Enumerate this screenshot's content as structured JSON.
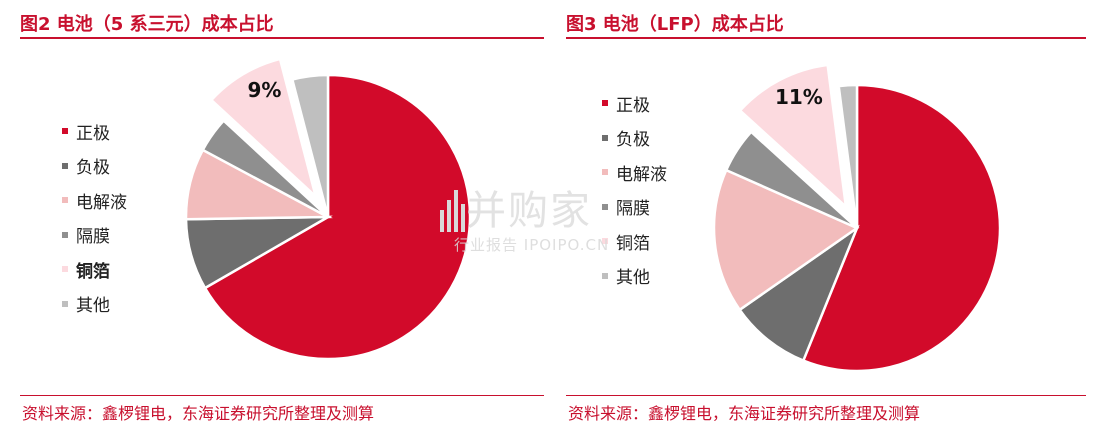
{
  "charts": [
    {
      "title": "图2  电池（5 系三元）成本占比",
      "source": "资料来源：鑫椤锂电，东海证券研究所整理及测算"
    },
    {
      "title": "图3  电池（LFP）成本占比",
      "source": "资料来源：鑫椤锂电，东海证券研究所整理及测算"
    }
  ],
  "watermark": {
    "main": "并购家",
    "sub": "行业报告 IPOIPO.CN"
  },
  "colors": {
    "正极": "#d20a2a",
    "负极": "#6e6e6e",
    "电解液": "#f2bcbc",
    "隔膜": "#8f8f8f",
    "铜箔": "#fcdadf",
    "其他": "#bfbfbf"
  },
  "chart_data": [
    {
      "type": "pie",
      "title": "图2  电池（5 系三元）成本占比",
      "categories": [
        "正极",
        "负极",
        "电解液",
        "隔膜",
        "铜箔",
        "其他"
      ],
      "values": [
        66,
        8,
        8,
        4,
        9,
        4
      ],
      "exploded": [
        "铜箔"
      ],
      "data_labels": [
        {
          "category": "铜箔",
          "text": "9%"
        }
      ],
      "legend_position": "left",
      "legend_bold": [
        "铜箔"
      ]
    },
    {
      "type": "pie",
      "title": "图3  电池（LFP）成本占比",
      "categories": [
        "正极",
        "负极",
        "电解液",
        "隔膜",
        "铜箔",
        "其他"
      ],
      "values": [
        55,
        9,
        16,
        5,
        11,
        2
      ],
      "exploded": [
        "铜箔"
      ],
      "data_labels": [
        {
          "category": "铜箔",
          "text": "11%"
        }
      ],
      "legend_position": "left",
      "legend_bold": []
    }
  ]
}
